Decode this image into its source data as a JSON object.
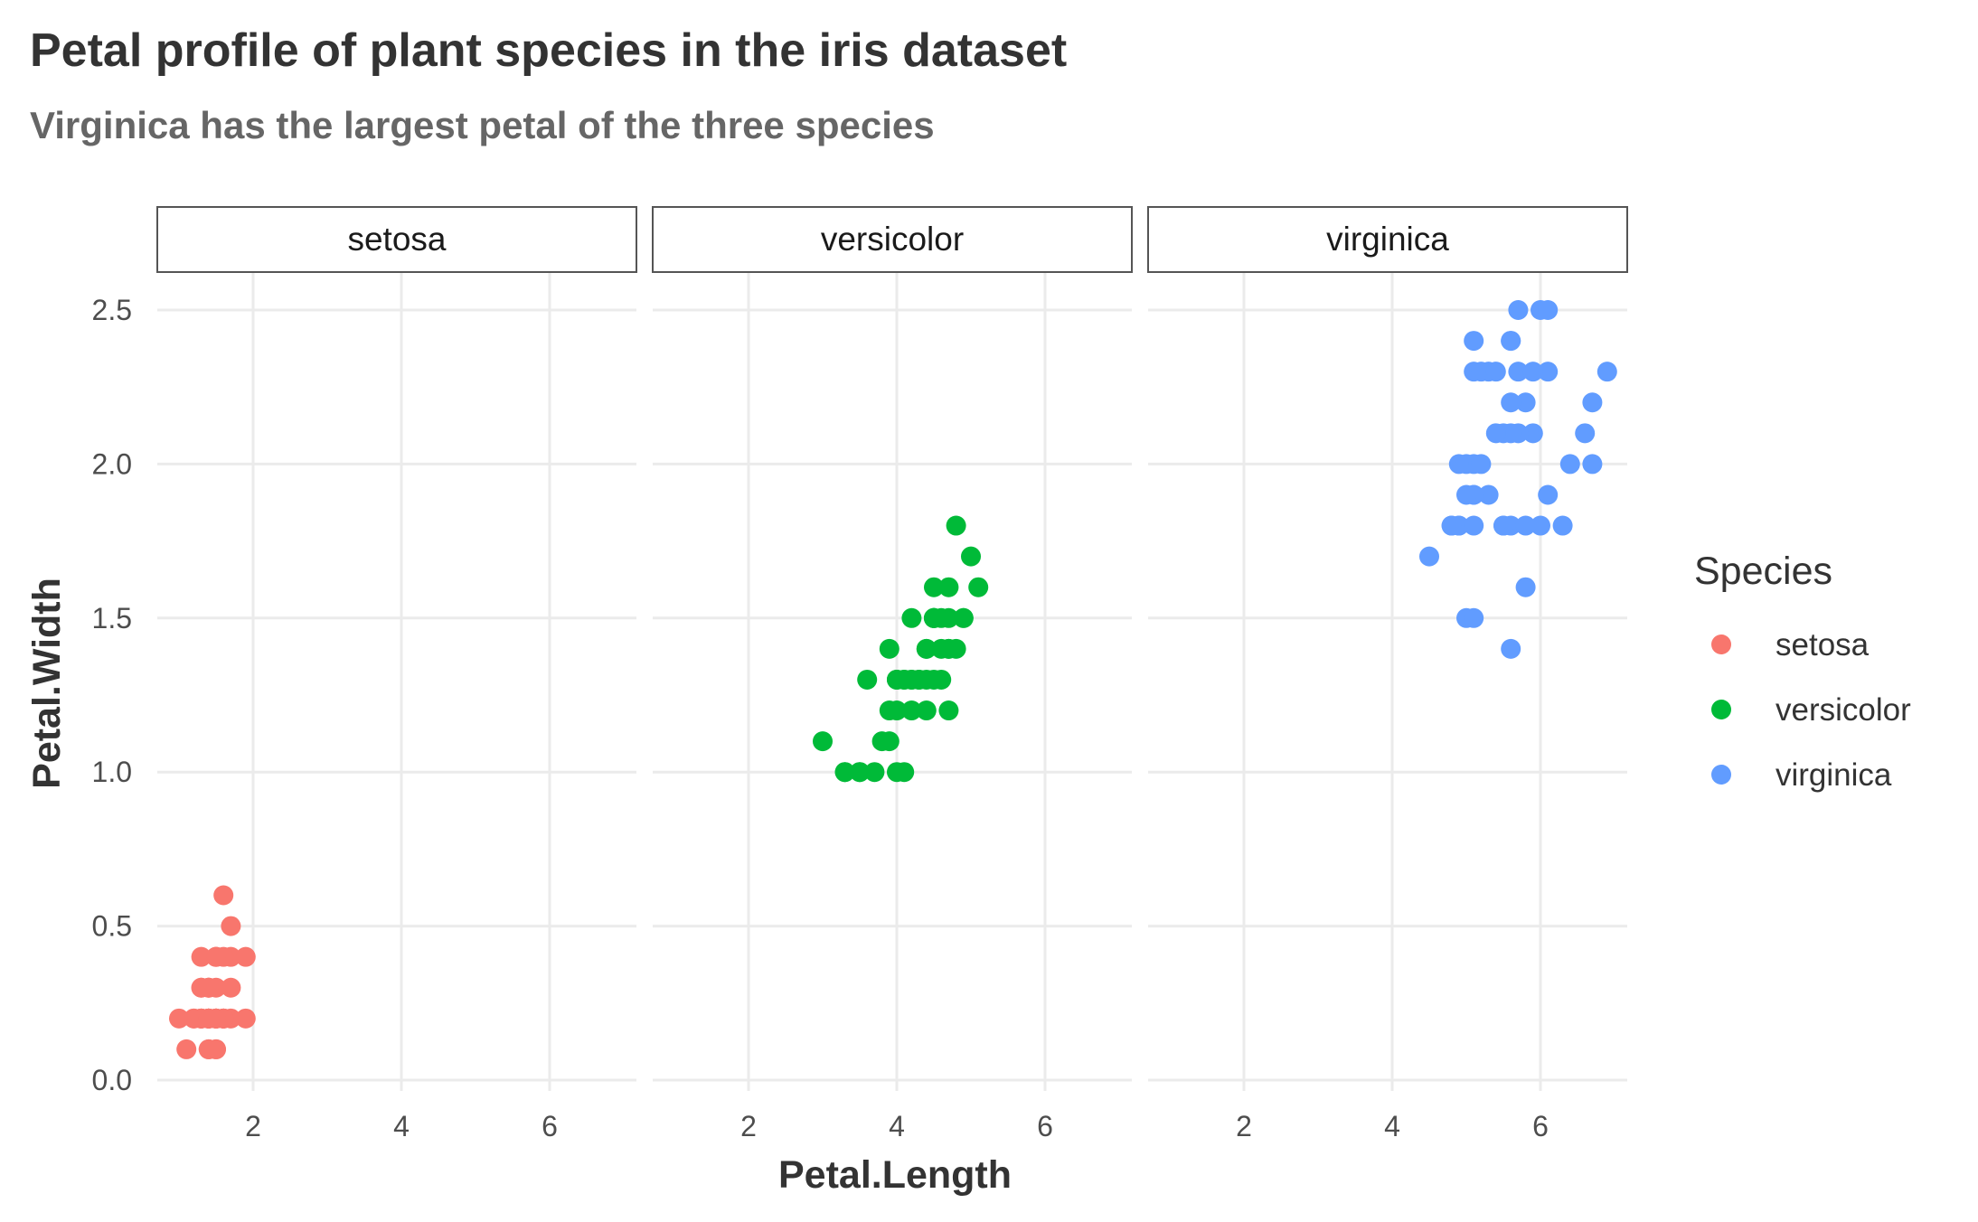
{
  "chart_data": {
    "type": "scatter",
    "title": "Petal profile of plant species in the iris dataset",
    "subtitle": "Virginica has the largest petal of the three species",
    "xlabel": "Petal.Length",
    "ylabel": "Petal.Width",
    "xlim": [
      0.7,
      7.2
    ],
    "ylim": [
      -0.03,
      2.6
    ],
    "x_ticks": [
      2,
      4,
      6
    ],
    "y_ticks": [
      0.0,
      0.5,
      1.0,
      1.5,
      2.0,
      2.5
    ],
    "y_tick_labels": [
      "0.0",
      "0.5",
      "1.0",
      "1.5",
      "2.0",
      "2.5"
    ],
    "grid": true,
    "facet_by": "Species",
    "legend": {
      "title": "Species",
      "position": "right"
    },
    "series": [
      {
        "name": "setosa",
        "color": "#F8766D",
        "points": [
          [
            1.4,
            0.2
          ],
          [
            1.4,
            0.2
          ],
          [
            1.3,
            0.2
          ],
          [
            1.5,
            0.2
          ],
          [
            1.4,
            0.2
          ],
          [
            1.7,
            0.4
          ],
          [
            1.4,
            0.3
          ],
          [
            1.5,
            0.2
          ],
          [
            1.4,
            0.2
          ],
          [
            1.5,
            0.1
          ],
          [
            1.5,
            0.2
          ],
          [
            1.6,
            0.2
          ],
          [
            1.4,
            0.1
          ],
          [
            1.1,
            0.1
          ],
          [
            1.2,
            0.2
          ],
          [
            1.5,
            0.4
          ],
          [
            1.3,
            0.4
          ],
          [
            1.4,
            0.3
          ],
          [
            1.7,
            0.3
          ],
          [
            1.5,
            0.3
          ],
          [
            1.7,
            0.2
          ],
          [
            1.5,
            0.4
          ],
          [
            1.0,
            0.2
          ],
          [
            1.7,
            0.5
          ],
          [
            1.9,
            0.2
          ],
          [
            1.6,
            0.2
          ],
          [
            1.6,
            0.4
          ],
          [
            1.5,
            0.2
          ],
          [
            1.4,
            0.2
          ],
          [
            1.6,
            0.2
          ],
          [
            1.6,
            0.2
          ],
          [
            1.5,
            0.4
          ],
          [
            1.5,
            0.1
          ],
          [
            1.4,
            0.2
          ],
          [
            1.5,
            0.2
          ],
          [
            1.2,
            0.2
          ],
          [
            1.3,
            0.2
          ],
          [
            1.4,
            0.1
          ],
          [
            1.3,
            0.2
          ],
          [
            1.5,
            0.2
          ],
          [
            1.3,
            0.3
          ],
          [
            1.3,
            0.3
          ],
          [
            1.3,
            0.2
          ],
          [
            1.6,
            0.6
          ],
          [
            1.9,
            0.4
          ],
          [
            1.4,
            0.3
          ],
          [
            1.6,
            0.2
          ],
          [
            1.4,
            0.2
          ],
          [
            1.5,
            0.2
          ],
          [
            1.4,
            0.2
          ]
        ]
      },
      {
        "name": "versicolor",
        "color": "#00BA38",
        "points": [
          [
            4.7,
            1.4
          ],
          [
            4.5,
            1.5
          ],
          [
            4.9,
            1.5
          ],
          [
            4.0,
            1.3
          ],
          [
            4.6,
            1.5
          ],
          [
            4.5,
            1.3
          ],
          [
            4.7,
            1.6
          ],
          [
            3.3,
            1.0
          ],
          [
            4.6,
            1.3
          ],
          [
            3.9,
            1.4
          ],
          [
            3.5,
            1.0
          ],
          [
            4.2,
            1.5
          ],
          [
            4.0,
            1.0
          ],
          [
            4.7,
            1.4
          ],
          [
            3.6,
            1.3
          ],
          [
            4.4,
            1.4
          ],
          [
            4.5,
            1.5
          ],
          [
            4.1,
            1.0
          ],
          [
            4.5,
            1.5
          ],
          [
            3.9,
            1.1
          ],
          [
            4.8,
            1.8
          ],
          [
            4.0,
            1.3
          ],
          [
            4.9,
            1.5
          ],
          [
            4.7,
            1.2
          ],
          [
            4.3,
            1.3
          ],
          [
            4.4,
            1.4
          ],
          [
            4.8,
            1.4
          ],
          [
            5.0,
            1.7
          ],
          [
            4.5,
            1.5
          ],
          [
            3.5,
            1.0
          ],
          [
            3.8,
            1.1
          ],
          [
            3.7,
            1.0
          ],
          [
            3.9,
            1.2
          ],
          [
            5.1,
            1.6
          ],
          [
            4.5,
            1.5
          ],
          [
            4.5,
            1.6
          ],
          [
            4.7,
            1.5
          ],
          [
            4.4,
            1.3
          ],
          [
            4.1,
            1.3
          ],
          [
            4.0,
            1.3
          ],
          [
            4.4,
            1.2
          ],
          [
            4.6,
            1.4
          ],
          [
            4.0,
            1.2
          ],
          [
            3.3,
            1.0
          ],
          [
            4.2,
            1.3
          ],
          [
            4.2,
            1.2
          ],
          [
            4.2,
            1.3
          ],
          [
            4.3,
            1.3
          ],
          [
            3.0,
            1.1
          ],
          [
            4.1,
            1.3
          ]
        ]
      },
      {
        "name": "virginica",
        "color": "#619CFF",
        "points": [
          [
            6.0,
            2.5
          ],
          [
            5.1,
            1.9
          ],
          [
            5.9,
            2.1
          ],
          [
            5.6,
            1.8
          ],
          [
            5.8,
            2.2
          ],
          [
            6.6,
            2.1
          ],
          [
            4.5,
            1.7
          ],
          [
            6.3,
            1.8
          ],
          [
            5.8,
            1.8
          ],
          [
            6.1,
            2.5
          ],
          [
            5.1,
            2.0
          ],
          [
            5.3,
            1.9
          ],
          [
            5.5,
            2.1
          ],
          [
            5.0,
            2.0
          ],
          [
            5.1,
            2.4
          ],
          [
            5.3,
            2.3
          ],
          [
            5.5,
            1.8
          ],
          [
            6.7,
            2.2
          ],
          [
            6.9,
            2.3
          ],
          [
            5.0,
            1.5
          ],
          [
            5.7,
            2.3
          ],
          [
            4.9,
            2.0
          ],
          [
            6.7,
            2.0
          ],
          [
            4.9,
            1.8
          ],
          [
            5.7,
            2.1
          ],
          [
            6.0,
            1.8
          ],
          [
            4.8,
            1.8
          ],
          [
            4.9,
            1.8
          ],
          [
            5.6,
            2.1
          ],
          [
            5.8,
            1.6
          ],
          [
            6.1,
            1.9
          ],
          [
            6.4,
            2.0
          ],
          [
            5.6,
            2.2
          ],
          [
            5.1,
            1.5
          ],
          [
            5.6,
            1.4
          ],
          [
            6.1,
            2.3
          ],
          [
            5.6,
            2.4
          ],
          [
            5.5,
            1.8
          ],
          [
            4.8,
            1.8
          ],
          [
            5.4,
            2.1
          ],
          [
            5.6,
            2.4
          ],
          [
            5.1,
            2.3
          ],
          [
            5.1,
            1.9
          ],
          [
            5.9,
            2.3
          ],
          [
            5.7,
            2.5
          ],
          [
            5.2,
            2.3
          ],
          [
            5.0,
            1.9
          ],
          [
            5.2,
            2.0
          ],
          [
            5.4,
            2.3
          ],
          [
            5.1,
            1.8
          ]
        ]
      }
    ]
  }
}
